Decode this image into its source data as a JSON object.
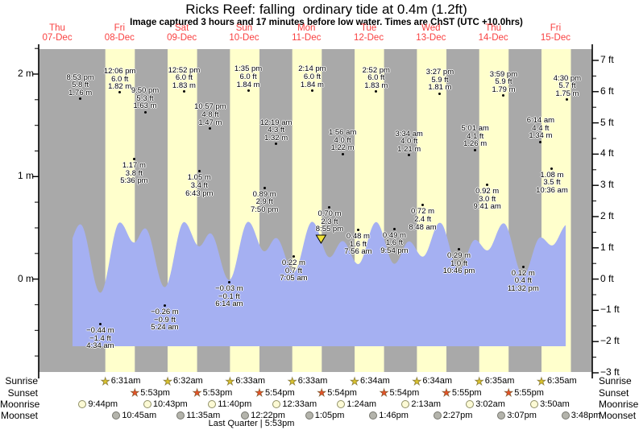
{
  "page": {
    "title": "Ricks Reef: falling  ordinary tide at 0.4m (1.2ft)",
    "subtitle": "Image captured 3 hours and 17 minutes before low water. Times are ChST (UTC +10.0hrs)"
  },
  "colors": {
    "day_band": "#ffffcc",
    "night_band": "#a9a9a9",
    "tide_fill": "#a5b0f2",
    "date_red": "#f94141",
    "now_marker": "#f2e437",
    "axis_black": "#000000"
  },
  "chart_data": {
    "type": "area",
    "title": "Ricks Reef: falling  ordinary tide at 0.4m (1.2ft)",
    "days": [
      {
        "name": "Thu",
        "date": "07-Dec"
      },
      {
        "name": "Fri",
        "date": "08-Dec"
      },
      {
        "name": "Sat",
        "date": "09-Dec"
      },
      {
        "name": "Sun",
        "date": "10-Dec"
      },
      {
        "name": "Mon",
        "date": "11-Dec"
      },
      {
        "name": "Tue",
        "date": "12-Dec"
      },
      {
        "name": "Wed",
        "date": "13-Dec"
      },
      {
        "name": "Thu",
        "date": "14-Dec"
      },
      {
        "name": "Fri",
        "date": "15-Dec"
      }
    ],
    "y_axis_left": {
      "unit": "m",
      "labels": [
        {
          "value": 2,
          "label": "2 m"
        },
        {
          "value": 1,
          "label": "1 m"
        },
        {
          "value": 0,
          "label": "0 m"
        }
      ]
    },
    "y_axis_right": {
      "unit": "ft",
      "labels": [
        {
          "value": 7,
          "label": "7 ft"
        },
        {
          "value": 6,
          "label": "6 ft"
        },
        {
          "value": 5,
          "label": "5 ft"
        },
        {
          "value": 4,
          "label": "4 ft"
        },
        {
          "value": 3,
          "label": "3 ft"
        },
        {
          "value": 2,
          "label": "2 ft"
        },
        {
          "value": 1,
          "label": "1 ft"
        },
        {
          "value": 0,
          "label": "0 ft"
        },
        {
          "value": -1,
          "label": "−1 ft"
        },
        {
          "value": -2,
          "label": "−2 ft"
        },
        {
          "value": -3,
          "label": "−3 ft"
        }
      ]
    },
    "tide_events": [
      {
        "kind": "high",
        "day": 0,
        "time_h": 20.88,
        "height_m": 1.76,
        "time": "8:53 pm",
        "ft": "5.8 ft",
        "m": "1.76 m"
      },
      {
        "kind": "low",
        "day": 1,
        "time_h": 4.57,
        "height_m": -0.44,
        "time": "4:34 am",
        "ft": "−1.4 ft",
        "m": "−0.44 m"
      },
      {
        "kind": "high",
        "day": 1,
        "time_h": 12.1,
        "height_m": 1.82,
        "time": "12:06 pm",
        "ft": "6.0 ft",
        "m": "1.82 m"
      },
      {
        "kind": "low",
        "day": 1,
        "time_h": 17.6,
        "height_m": 1.17,
        "time": "5:36 pm",
        "ft": "3.8 ft",
        "m": "1.17 m"
      },
      {
        "kind": "high",
        "day": 1,
        "time_h": 21.83,
        "height_m": 1.63,
        "time": "9:50 pm",
        "ft": "5.3 ft",
        "m": "1.63 m"
      },
      {
        "kind": "low",
        "day": 2,
        "time_h": 5.4,
        "height_m": -0.26,
        "time": "5:24 am",
        "ft": "−0.9 ft",
        "m": "−0.26 m"
      },
      {
        "kind": "high",
        "day": 2,
        "time_h": 12.87,
        "height_m": 1.83,
        "time": "12:52 pm",
        "ft": "6.0 ft",
        "m": "1.83 m"
      },
      {
        "kind": "low",
        "day": 2,
        "time_h": 18.72,
        "height_m": 1.05,
        "time": "6:43 pm",
        "ft": "3.4 ft",
        "m": "1.05 m"
      },
      {
        "kind": "high",
        "day": 2,
        "time_h": 22.95,
        "height_m": 1.47,
        "time": "10:57 pm",
        "ft": "4.8 ft",
        "m": "1.47 m"
      },
      {
        "kind": "low",
        "day": 3,
        "time_h": 6.23,
        "height_m": -0.03,
        "time": "6:14 am",
        "ft": "−0.1 ft",
        "m": "−0.03 m"
      },
      {
        "kind": "high",
        "day": 3,
        "time_h": 13.58,
        "height_m": 1.84,
        "time": "1:35 pm",
        "ft": "6.0 ft",
        "m": "1.84 m"
      },
      {
        "kind": "low",
        "day": 3,
        "time_h": 19.83,
        "height_m": 0.89,
        "time": "7:50 pm",
        "ft": "2.9 ft",
        "m": "0.89 m"
      },
      {
        "kind": "high",
        "day": 4,
        "time_h": 0.32,
        "height_m": 1.32,
        "time": "12:19 am",
        "ft": "4.3 ft",
        "m": "1.32 m"
      },
      {
        "kind": "low",
        "day": 4,
        "time_h": 7.08,
        "height_m": 0.22,
        "time": "7:05 am",
        "ft": "0.7 ft",
        "m": "0.22 m"
      },
      {
        "kind": "high",
        "day": 4,
        "time_h": 14.23,
        "height_m": 1.84,
        "time": "2:14 pm",
        "ft": "6.0 ft",
        "m": "1.84 m"
      },
      {
        "kind": "low",
        "day": 4,
        "time_h": 20.92,
        "height_m": 0.7,
        "time": "8:55 pm",
        "ft": "2.3 ft",
        "m": "0.70 m"
      },
      {
        "kind": "high",
        "day": 5,
        "time_h": 1.93,
        "height_m": 1.22,
        "time": "1:56 am",
        "ft": "4.0 ft",
        "m": "1.22 m"
      },
      {
        "kind": "low",
        "day": 5,
        "time_h": 7.93,
        "height_m": 0.48,
        "time": "7:56 am",
        "ft": "1.6 ft",
        "m": "0.48 m"
      },
      {
        "kind": "high",
        "day": 5,
        "time_h": 14.87,
        "height_m": 1.83,
        "time": "2:52 pm",
        "ft": "6.0 ft",
        "m": "1.83 m"
      },
      {
        "kind": "low",
        "day": 5,
        "time_h": 21.9,
        "height_m": 0.49,
        "time": "9:54 pm",
        "ft": "1.6 ft",
        "m": "0.49 m"
      },
      {
        "kind": "high",
        "day": 6,
        "time_h": 3.57,
        "height_m": 1.21,
        "time": "3:34 am",
        "ft": "4.0 ft",
        "m": "1.21 m"
      },
      {
        "kind": "low",
        "day": 6,
        "time_h": 8.8,
        "height_m": 0.72,
        "time": "8:48 am",
        "ft": "2.4 ft",
        "m": "0.72 m"
      },
      {
        "kind": "high",
        "day": 6,
        "time_h": 15.45,
        "height_m": 1.81,
        "time": "3:27 pm",
        "ft": "5.9 ft",
        "m": "1.81 m"
      },
      {
        "kind": "low",
        "day": 6,
        "time_h": 22.77,
        "height_m": 0.29,
        "time": "10:46 pm",
        "ft": "1.0 ft",
        "m": "0.29 m"
      },
      {
        "kind": "high",
        "day": 7,
        "time_h": 5.02,
        "height_m": 1.26,
        "time": "5:01 am",
        "ft": "4.1 ft",
        "m": "1.26 m"
      },
      {
        "kind": "low",
        "day": 7,
        "time_h": 9.68,
        "height_m": 0.92,
        "time": "9:41 am",
        "ft": "3.0 ft",
        "m": "0.92 m"
      },
      {
        "kind": "high",
        "day": 7,
        "time_h": 15.98,
        "height_m": 1.79,
        "time": "3:59 pm",
        "ft": "5.9 ft",
        "m": "1.79 m"
      },
      {
        "kind": "low",
        "day": 7,
        "time_h": 23.53,
        "height_m": 0.12,
        "time": "11:32 pm",
        "ft": "0.4 ft",
        "m": "0.12 m"
      },
      {
        "kind": "high",
        "day": 8,
        "time_h": 6.23,
        "height_m": 1.34,
        "time": "6:14 am",
        "ft": "4.4 ft",
        "m": "1.34 m"
      },
      {
        "kind": "low",
        "day": 8,
        "time_h": 10.6,
        "height_m": 1.08,
        "time": "10:36 am",
        "ft": "3.5 ft",
        "m": "1.08 m"
      },
      {
        "kind": "high",
        "day": 8,
        "time_h": 16.5,
        "height_m": 1.75,
        "time": "4:30 pm",
        "ft": "5.7 ft",
        "m": "1.75 m"
      }
    ],
    "now_marker": {
      "day": 4,
      "time_h": 17.63
    }
  },
  "sun_moon": {
    "rows": [
      {
        "key": "sunrise",
        "label": "Sunrise",
        "icon": "sunrise-star-icon",
        "marker": "star",
        "color": "#d9c230",
        "entries": [
          {
            "day": 1,
            "time_h": 6.52,
            "label": "6:31am"
          },
          {
            "day": 2,
            "time_h": 6.53,
            "label": "6:32am"
          },
          {
            "day": 3,
            "time_h": 6.55,
            "label": "6:33am"
          },
          {
            "day": 4,
            "time_h": 6.55,
            "label": "6:33am"
          },
          {
            "day": 5,
            "time_h": 6.57,
            "label": "6:34am"
          },
          {
            "day": 6,
            "time_h": 6.57,
            "label": "6:34am"
          },
          {
            "day": 7,
            "time_h": 6.58,
            "label": "6:35am"
          },
          {
            "day": 8,
            "time_h": 6.58,
            "label": "6:35am"
          }
        ]
      },
      {
        "key": "sunset",
        "label": "Sunset",
        "icon": "sunset-star-icon",
        "marker": "star",
        "color": "#e5532a",
        "entries": [
          {
            "day": 1,
            "time_h": 17.88,
            "label": "5:53pm"
          },
          {
            "day": 2,
            "time_h": 17.88,
            "label": "5:53pm"
          },
          {
            "day": 3,
            "time_h": 17.9,
            "label": "5:54pm"
          },
          {
            "day": 4,
            "time_h": 17.9,
            "label": "5:54pm"
          },
          {
            "day": 5,
            "time_h": 17.9,
            "label": "5:54pm"
          },
          {
            "day": 6,
            "time_h": 17.92,
            "label": "5:55pm"
          },
          {
            "day": 7,
            "time_h": 17.92,
            "label": "5:55pm"
          }
        ]
      },
      {
        "key": "moonrise",
        "label": "Moonrise",
        "icon": "moonrise-circle-icon",
        "marker": "circle",
        "color": "#fcfad5",
        "border": "#8f8f66",
        "entries": [
          {
            "day": 0,
            "time_h": 21.73,
            "label": "9:44pm"
          },
          {
            "day": 1,
            "time_h": 22.72,
            "label": "10:43pm"
          },
          {
            "day": 2,
            "time_h": 23.67,
            "label": "11:40pm"
          },
          {
            "day": 4,
            "time_h": 0.55,
            "label": "12:33am"
          },
          {
            "day": 5,
            "time_h": 1.4,
            "label": "1:24am"
          },
          {
            "day": 6,
            "time_h": 2.22,
            "label": "2:13am"
          },
          {
            "day": 7,
            "time_h": 3.03,
            "label": "3:02am"
          },
          {
            "day": 8,
            "time_h": 3.83,
            "label": "3:50am"
          }
        ]
      },
      {
        "key": "moonset",
        "label": "Moonset",
        "icon": "moonset-circle-icon",
        "marker": "circle",
        "color": "#b4b4ac",
        "border": "#75756d",
        "entries": [
          {
            "day": 1,
            "time_h": 10.75,
            "label": "10:45am"
          },
          {
            "day": 2,
            "time_h": 11.58,
            "label": "11:35am"
          },
          {
            "day": 3,
            "time_h": 12.37,
            "label": "12:22pm"
          },
          {
            "day": 4,
            "time_h": 13.08,
            "label": "1:05pm"
          },
          {
            "day": 5,
            "time_h": 13.77,
            "label": "1:46pm"
          },
          {
            "day": 6,
            "time_h": 14.45,
            "label": "2:27pm"
          },
          {
            "day": 7,
            "time_h": 15.12,
            "label": "3:07pm"
          },
          {
            "day": 8,
            "time_h": 15.8,
            "label": "3:48pm"
          }
        ]
      }
    ],
    "moon_phase": "Last Quarter | 5:53pm"
  }
}
